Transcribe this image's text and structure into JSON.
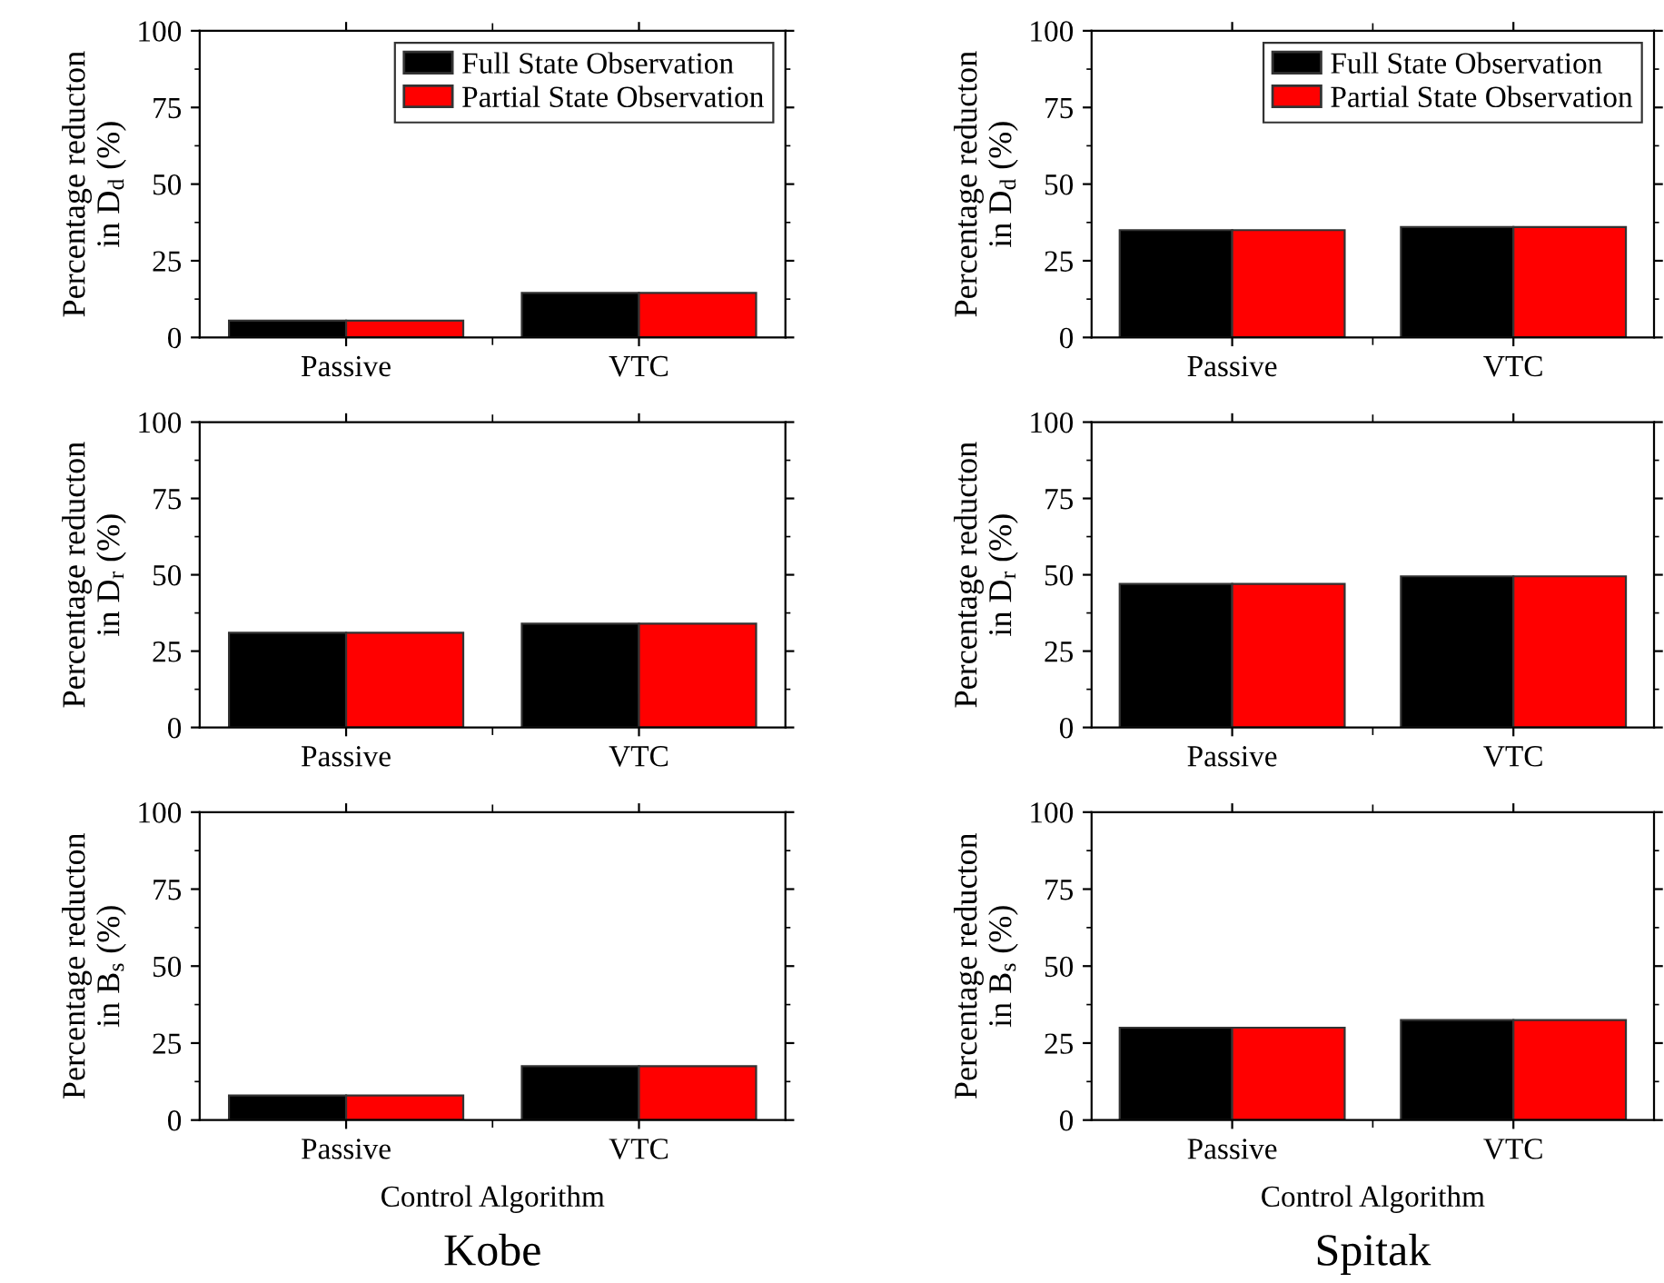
{
  "chart_data": [
    {
      "type": "bar",
      "categories": [
        "Passive",
        "VTC"
      ],
      "ylabel": "Percentage reducton\nin D$_{d}$ (%)",
      "ylim": [
        0,
        100
      ],
      "yticks": [
        0,
        25,
        50,
        75,
        100
      ],
      "legend": "top right",
      "grid": false,
      "series": [
        {
          "name": "Full State Observation",
          "color": "#000000",
          "values": [
            5.5,
            14.5
          ]
        },
        {
          "name": "Partial State Observation",
          "color": "#ff0000",
          "values": [
            5.5,
            14.5
          ]
        }
      ]
    },
    {
      "type": "bar",
      "categories": [
        "Passive",
        "VTC"
      ],
      "ylabel": "Percentage reducton\nin D$_{d}$ (%)",
      "ylim": [
        0,
        100
      ],
      "yticks": [
        0,
        25,
        50,
        75,
        100
      ],
      "legend": "top right",
      "grid": false,
      "series": [
        {
          "name": "Full State Observation",
          "color": "#000000",
          "values": [
            35,
            36
          ]
        },
        {
          "name": "Partial State Observation",
          "color": "#ff0000",
          "values": [
            35,
            36
          ]
        }
      ]
    },
    {
      "type": "bar",
      "categories": [
        "Passive",
        "VTC"
      ],
      "ylabel": "Percentage reducton\nin D$_{r}$ (%)",
      "ylim": [
        0,
        100
      ],
      "yticks": [
        0,
        25,
        50,
        75,
        100
      ],
      "grid": false,
      "series": [
        {
          "color": "#000000",
          "values": [
            31,
            34
          ]
        },
        {
          "color": "#ff0000",
          "values": [
            31,
            34
          ]
        }
      ]
    },
    {
      "type": "bar",
      "categories": [
        "Passive",
        "VTC"
      ],
      "ylabel": "Percentage reducton\nin D$_{r}$ (%)",
      "ylim": [
        0,
        100
      ],
      "yticks": [
        0,
        25,
        50,
        75,
        100
      ],
      "grid": false,
      "series": [
        {
          "color": "#000000",
          "values": [
            47,
            49.5
          ]
        },
        {
          "color": "#ff0000",
          "values": [
            47,
            49.5
          ]
        }
      ]
    },
    {
      "type": "bar",
      "categories": [
        "Passive",
        "VTC"
      ],
      "ylabel": "Percentage reducton\nin B$_{s}$ (%)",
      "xlabel": "Control Algorithm",
      "annotations": [
        "Kobe"
      ],
      "ylim": [
        0,
        100
      ],
      "yticks": [
        0,
        25,
        50,
        75,
        100
      ],
      "grid": false,
      "series": [
        {
          "color": "#000000",
          "values": [
            8,
            17.5
          ]
        },
        {
          "color": "#ff0000",
          "values": [
            8,
            17.5
          ]
        }
      ]
    },
    {
      "type": "bar",
      "categories": [
        "Passive",
        "VTC"
      ],
      "ylabel": "Percentage reducton\nin B$_{s}$ (%)",
      "xlabel": "Control Algorithm",
      "annotations": [
        "Spitak"
      ],
      "ylim": [
        0,
        100
      ],
      "yticks": [
        0,
        25,
        50,
        75,
        100
      ],
      "grid": false,
      "series": [
        {
          "color": "#000000",
          "values": [
            30,
            32.5
          ]
        },
        {
          "color": "#ff0000",
          "values": [
            30,
            32.5
          ]
        }
      ]
    }
  ]
}
